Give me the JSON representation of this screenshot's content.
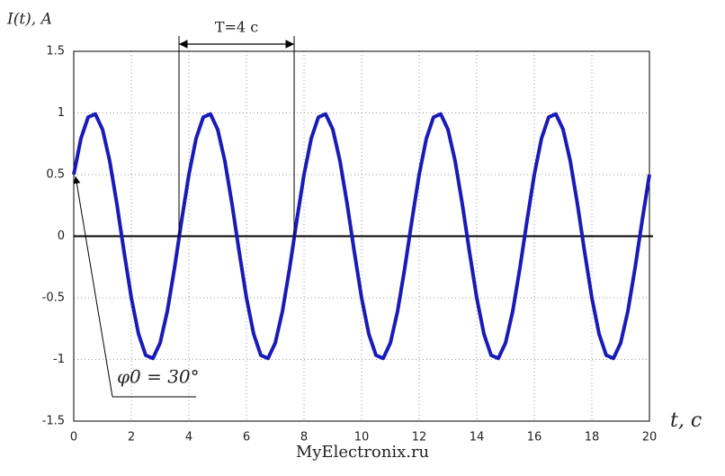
{
  "chart_data": {
    "type": "line",
    "y_label": "I(t), A",
    "x_label": "t, c",
    "period_label": "T=4 c",
    "phase_label": "φ0 = 30°",
    "watermark": "MyElectronix.ru",
    "x": [
      0,
      0.25,
      0.5,
      0.75,
      1,
      1.25,
      1.5,
      1.75,
      2,
      2.25,
      2.5,
      2.75,
      3,
      3.25,
      3.5,
      3.75,
      4,
      4.25,
      4.5,
      4.75,
      5,
      5.25,
      5.5,
      5.75,
      6,
      6.25,
      6.5,
      6.75,
      7,
      7.25,
      7.5,
      7.75,
      8,
      8.25,
      8.5,
      8.75,
      9,
      9.25,
      9.5,
      9.75,
      10,
      10.25,
      10.5,
      10.75,
      11,
      11.25,
      11.5,
      11.75,
      12,
      12.25,
      12.5,
      12.75,
      13,
      13.25,
      13.5,
      13.75,
      14,
      14.25,
      14.5,
      14.75,
      15,
      15.25,
      15.5,
      15.75,
      16,
      16.25,
      16.5,
      16.75,
      17,
      17.25,
      17.5,
      17.75,
      18,
      18.25,
      18.5,
      18.75,
      19,
      19.25,
      19.5,
      19.75,
      20
    ],
    "series": [
      {
        "color": "#1a1ab8",
        "values": [
          0.5,
          0.793,
          0.966,
          0.991,
          0.866,
          0.609,
          0.259,
          -0.131,
          -0.5,
          -0.793,
          -0.966,
          -0.991,
          -0.866,
          -0.609,
          -0.259,
          0.131,
          0.5,
          0.793,
          0.966,
          0.991,
          0.866,
          0.609,
          0.259,
          -0.131,
          -0.5,
          -0.793,
          -0.966,
          -0.991,
          -0.866,
          -0.609,
          -0.259,
          0.131,
          0.5,
          0.793,
          0.966,
          0.991,
          0.866,
          0.609,
          0.259,
          -0.131,
          -0.5,
          -0.793,
          -0.966,
          -0.991,
          -0.866,
          -0.609,
          -0.259,
          0.131,
          0.5,
          0.793,
          0.966,
          0.991,
          0.866,
          0.609,
          0.259,
          -0.131,
          -0.5,
          -0.793,
          -0.966,
          -0.991,
          -0.866,
          -0.609,
          -0.259,
          0.131,
          0.5,
          0.793,
          0.966,
          0.991,
          0.866,
          0.609,
          0.259,
          -0.131,
          -0.5,
          -0.793,
          -0.966,
          -0.991,
          -0.866,
          -0.609,
          -0.259,
          0.131,
          0.5
        ]
      }
    ],
    "xlim": [
      0,
      20
    ],
    "xticks": [
      0,
      2,
      4,
      6,
      8,
      10,
      12,
      14,
      16,
      18,
      20
    ],
    "ylim": [
      -1.5,
      1.5
    ],
    "yticks": [
      -1.5,
      -1,
      -0.5,
      0,
      0.5,
      1,
      1.5
    ],
    "grid": true
  }
}
